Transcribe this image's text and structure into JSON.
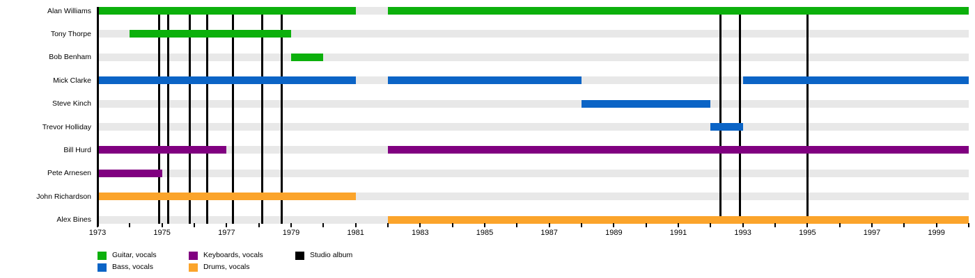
{
  "chart_data": {
    "type": "timeline",
    "x_axis": {
      "start": 1973,
      "end": 2000,
      "label_years": [
        1973,
        1975,
        1977,
        1979,
        1981,
        1983,
        1985,
        1987,
        1989,
        1991,
        1993,
        1995,
        1997,
        1999
      ],
      "minor_tick_every": 1
    },
    "rows": [
      {
        "name": "Alan Williams",
        "role": "guitar",
        "segments": [
          [
            1973,
            1981
          ],
          [
            1982,
            2000
          ]
        ]
      },
      {
        "name": "Tony Thorpe",
        "role": "guitar",
        "segments": [
          [
            1974,
            1979
          ]
        ]
      },
      {
        "name": "Bob Benham",
        "role": "guitar",
        "segments": [
          [
            1979,
            1980
          ]
        ]
      },
      {
        "name": "Mick Clarke",
        "role": "bass",
        "segments": [
          [
            1973,
            1981
          ],
          [
            1982,
            1988
          ],
          [
            1993,
            2000
          ]
        ]
      },
      {
        "name": "Steve Kinch",
        "role": "bass",
        "segments": [
          [
            1988,
            1992
          ]
        ]
      },
      {
        "name": "Trevor Holliday",
        "role": "bass",
        "segments": [
          [
            1992,
            1993
          ]
        ]
      },
      {
        "name": "Bill Hurd",
        "role": "keyboards",
        "segments": [
          [
            1973,
            1977
          ],
          [
            1982,
            2000
          ]
        ]
      },
      {
        "name": "Pete Arnesen",
        "role": "keyboards",
        "segments": [
          [
            1973,
            1975
          ]
        ]
      },
      {
        "name": "John Richardson",
        "role": "drums",
        "segments": [
          [
            1973,
            1981
          ]
        ]
      },
      {
        "name": "Alex Bines",
        "role": "drums",
        "segments": [
          [
            1982,
            2000
          ]
        ]
      }
    ],
    "album_release_years": [
      1974.9,
      1975.2,
      1975.85,
      1976.4,
      1977.2,
      1978.1,
      1978.7,
      1992.3,
      1992.9,
      1995.0
    ],
    "legend_columns": [
      [
        {
          "role": "guitar",
          "label": "Guitar, vocals"
        },
        {
          "role": "bass",
          "label": "Bass, vocals"
        }
      ],
      [
        {
          "role": "keyboards",
          "label": "Keyboards, vocals"
        },
        {
          "role": "drums",
          "label": "Drums, vocals"
        }
      ],
      [
        {
          "role": "album",
          "label": "Studio album"
        }
      ]
    ],
    "colors": {
      "guitar": "#0CB00C",
      "bass": "#0B64C6",
      "keyboards": "#800080",
      "drums": "#FBA42B",
      "album": "#000000",
      "track": "#E8E8E8"
    }
  }
}
